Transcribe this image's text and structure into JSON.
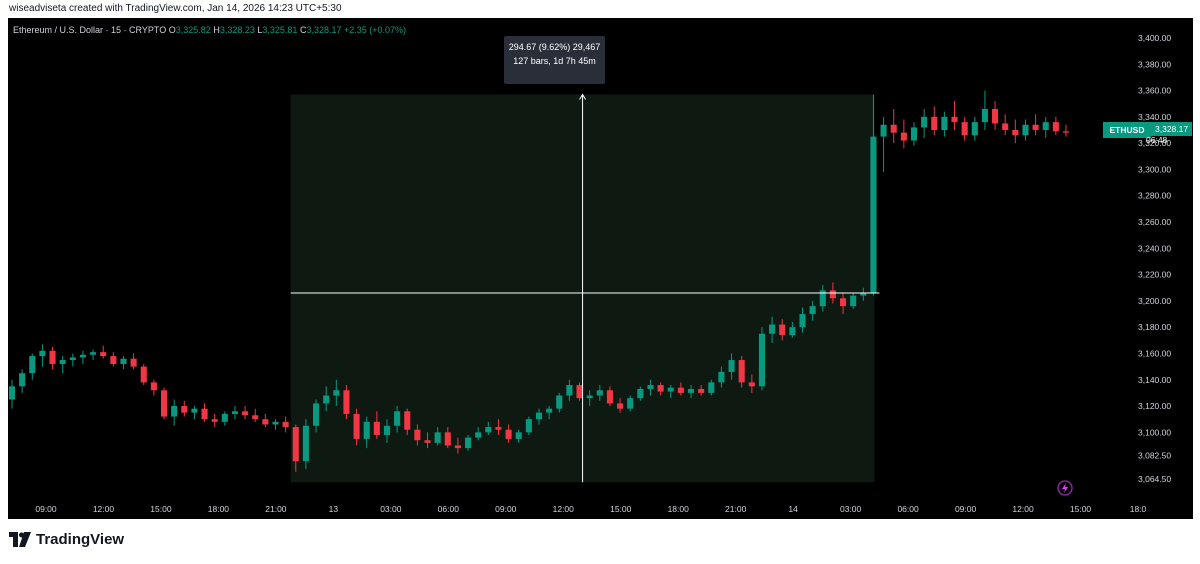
{
  "header": {
    "text": "wiseadviseta created with TradingView.com, Jan 14, 2026 14:23 UTC+5:30"
  },
  "legend": {
    "symbol": "Ethereum / U.S. Dollar · 15 · CRYPTO",
    "o_key": "O",
    "o_val": "3,325.82",
    "h_key": "H",
    "h_val": "3,328.23",
    "l_key": "L",
    "l_val": "3,325.81",
    "c_key": "C",
    "c_val": "3,328.17",
    "change": "+2.35 (+0.07%)"
  },
  "measure_tooltip": {
    "line1": "294.67 (9.62%) 29,467",
    "line2": "127 bars, 1d 7h 45m"
  },
  "price_tag": {
    "symbol": "ETHUSD",
    "price": "3,328.17",
    "countdown": "06:48"
  },
  "footer": {
    "brand": "TradingView"
  },
  "colors": {
    "up": "#089981",
    "down": "#f23645",
    "background": "#000000",
    "measure_fill": "#0e1a11",
    "crosshair": "#ffffff",
    "axis_text": "#d1d4dc"
  },
  "icons": [
    "bolt-icon",
    "tradingview-logo-icon"
  ],
  "chart_data": {
    "type": "candlestick",
    "symbol": "ETHUSD",
    "interval": "15",
    "y_ticks": [
      3400,
      3380,
      3360,
      3340,
      3320,
      3300,
      3280,
      3260,
      3240,
      3220,
      3200,
      3180,
      3160,
      3140,
      3120,
      3100,
      3082.5,
      3064.5
    ],
    "y_tick_labels": [
      "3,400.00",
      "3,380.00",
      "3,360.00",
      "3,340.00",
      "3,320.00",
      "3,300.00",
      "3,280.00",
      "3,260.00",
      "3,240.00",
      "3,220.00",
      "3,200.00",
      "3,180.00",
      "3,160.00",
      "3,140.00",
      "3,120.00",
      "3,100.00",
      "3,082.50",
      "3,064.50"
    ],
    "x_tick_labels": [
      "09:00",
      "12:00",
      "15:00",
      "18:00",
      "21:00",
      "13",
      "03:00",
      "06:00",
      "09:00",
      "12:00",
      "15:00",
      "18:00",
      "21:00",
      "14",
      "03:00",
      "06:00",
      "09:00",
      "12:00",
      "15:00",
      "18:0"
    ],
    "measure_range": {
      "from": 3062,
      "to": 3357,
      "change": 294.67,
      "change_pct": 9.62,
      "bars": 127
    },
    "crosshair_price": 3206,
    "candles": [
      [
        3125,
        3140,
        3118,
        3135
      ],
      [
        3135,
        3148,
        3130,
        3145
      ],
      [
        3145,
        3160,
        3140,
        3158
      ],
      [
        3158,
        3167,
        3150,
        3162
      ],
      [
        3162,
        3165,
        3148,
        3152
      ],
      [
        3152,
        3158,
        3145,
        3155
      ],
      [
        3155,
        3160,
        3150,
        3157
      ],
      [
        3157,
        3162,
        3152,
        3159
      ],
      [
        3159,
        3163,
        3155,
        3161
      ],
      [
        3161,
        3166,
        3156,
        3158
      ],
      [
        3158,
        3161,
        3150,
        3152
      ],
      [
        3152,
        3158,
        3148,
        3156
      ],
      [
        3156,
        3160,
        3148,
        3150
      ],
      [
        3150,
        3152,
        3136,
        3138
      ],
      [
        3138,
        3140,
        3128,
        3132
      ],
      [
        3132,
        3134,
        3110,
        3112
      ],
      [
        3112,
        3125,
        3105,
        3120
      ],
      [
        3120,
        3124,
        3112,
        3115
      ],
      [
        3115,
        3120,
        3110,
        3118
      ],
      [
        3118,
        3122,
        3108,
        3110
      ],
      [
        3110,
        3114,
        3104,
        3108
      ],
      [
        3108,
        3116,
        3105,
        3114
      ],
      [
        3114,
        3120,
        3110,
        3116
      ],
      [
        3116,
        3120,
        3110,
        3113
      ],
      [
        3113,
        3118,
        3108,
        3110
      ],
      [
        3110,
        3114,
        3104,
        3106
      ],
      [
        3106,
        3110,
        3102,
        3108
      ],
      [
        3108,
        3112,
        3100,
        3104
      ],
      [
        3104,
        3106,
        3070,
        3078
      ],
      [
        3078,
        3110,
        3072,
        3105
      ],
      [
        3105,
        3125,
        3100,
        3122
      ],
      [
        3122,
        3135,
        3116,
        3128
      ],
      [
        3128,
        3140,
        3120,
        3132
      ],
      [
        3132,
        3136,
        3110,
        3114
      ],
      [
        3114,
        3118,
        3090,
        3095
      ],
      [
        3095,
        3112,
        3088,
        3108
      ],
      [
        3108,
        3116,
        3095,
        3098
      ],
      [
        3098,
        3110,
        3092,
        3105
      ],
      [
        3105,
        3120,
        3100,
        3116
      ],
      [
        3116,
        3118,
        3098,
        3102
      ],
      [
        3102,
        3106,
        3090,
        3094
      ],
      [
        3094,
        3100,
        3088,
        3092
      ],
      [
        3092,
        3104,
        3090,
        3100
      ],
      [
        3100,
        3104,
        3088,
        3090
      ],
      [
        3090,
        3096,
        3084,
        3088
      ],
      [
        3088,
        3098,
        3086,
        3096
      ],
      [
        3096,
        3104,
        3094,
        3100
      ],
      [
        3100,
        3108,
        3098,
        3104
      ],
      [
        3104,
        3110,
        3098,
        3102
      ],
      [
        3102,
        3106,
        3092,
        3095
      ],
      [
        3095,
        3102,
        3092,
        3100
      ],
      [
        3100,
        3112,
        3098,
        3110
      ],
      [
        3110,
        3118,
        3106,
        3115
      ],
      [
        3115,
        3120,
        3110,
        3118
      ],
      [
        3118,
        3130,
        3115,
        3128
      ],
      [
        3128,
        3140,
        3124,
        3136
      ],
      [
        3136,
        3138,
        3124,
        3126
      ],
      [
        3126,
        3132,
        3120,
        3128
      ],
      [
        3128,
        3136,
        3124,
        3132
      ],
      [
        3132,
        3135,
        3120,
        3122
      ],
      [
        3122,
        3126,
        3115,
        3118
      ],
      [
        3118,
        3128,
        3116,
        3126
      ],
      [
        3126,
        3135,
        3124,
        3133
      ],
      [
        3133,
        3140,
        3128,
        3136
      ],
      [
        3136,
        3138,
        3128,
        3131
      ],
      [
        3131,
        3136,
        3126,
        3134
      ],
      [
        3134,
        3138,
        3128,
        3130
      ],
      [
        3130,
        3136,
        3126,
        3133
      ],
      [
        3133,
        3136,
        3128,
        3130
      ],
      [
        3130,
        3140,
        3128,
        3138
      ],
      [
        3138,
        3150,
        3134,
        3146
      ],
      [
        3146,
        3160,
        3140,
        3155
      ],
      [
        3155,
        3158,
        3134,
        3138
      ],
      [
        3138,
        3144,
        3130,
        3135
      ],
      [
        3135,
        3180,
        3132,
        3175
      ],
      [
        3175,
        3188,
        3168,
        3182
      ],
      [
        3182,
        3186,
        3170,
        3174
      ],
      [
        3174,
        3184,
        3172,
        3180
      ],
      [
        3180,
        3195,
        3176,
        3190
      ],
      [
        3190,
        3200,
        3185,
        3196
      ],
      [
        3196,
        3212,
        3192,
        3208
      ],
      [
        3208,
        3214,
        3198,
        3202
      ],
      [
        3202,
        3206,
        3190,
        3196
      ],
      [
        3196,
        3206,
        3194,
        3204
      ],
      [
        3204,
        3210,
        3200,
        3206
      ],
      [
        3206,
        3357,
        3204,
        3325
      ],
      [
        3325,
        3340,
        3298,
        3334
      ],
      [
        3334,
        3346,
        3320,
        3328
      ],
      [
        3328,
        3338,
        3316,
        3322
      ],
      [
        3322,
        3336,
        3318,
        3332
      ],
      [
        3332,
        3346,
        3324,
        3340
      ],
      [
        3340,
        3348,
        3326,
        3330
      ],
      [
        3330,
        3344,
        3325,
        3340
      ],
      [
        3340,
        3352,
        3330,
        3336
      ],
      [
        3336,
        3340,
        3322,
        3326
      ],
      [
        3326,
        3340,
        3322,
        3336
      ],
      [
        3336,
        3360,
        3330,
        3346
      ],
      [
        3346,
        3352,
        3330,
        3335
      ],
      [
        3335,
        3342,
        3326,
        3330
      ],
      [
        3330,
        3338,
        3320,
        3326
      ],
      [
        3326,
        3338,
        3322,
        3334
      ],
      [
        3334,
        3342,
        3326,
        3330
      ],
      [
        3330,
        3340,
        3324,
        3336
      ],
      [
        3336,
        3340,
        3326,
        3329
      ],
      [
        3329,
        3334,
        3325,
        3328
      ]
    ]
  }
}
